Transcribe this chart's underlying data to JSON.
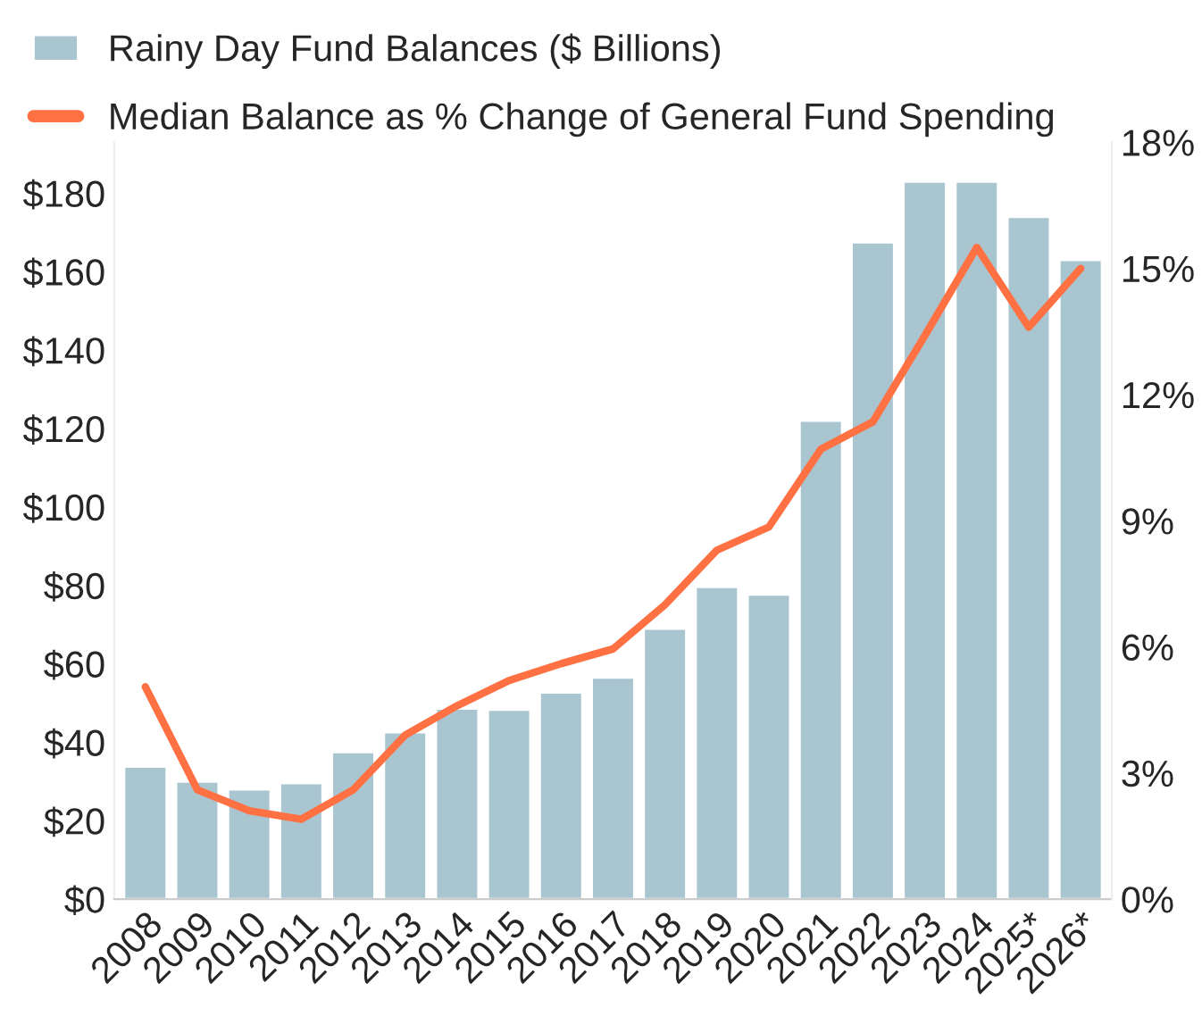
{
  "chart_data": {
    "type": "bar",
    "categories": [
      "2008",
      "2009",
      "2010",
      "2011",
      "2012",
      "2013",
      "2014",
      "2015",
      "2016",
      "2017",
      "2018",
      "2019",
      "2020",
      "2021",
      "2022",
      "2023",
      "2024",
      "2025*",
      "2026*"
    ],
    "series": [
      {
        "name": "Rainy Day Fund Balances ($ Billions)",
        "color": "#a9c6d0",
        "values": [
          33.8,
          30,
          28,
          29.6,
          37.5,
          42.6,
          48.6,
          48.3,
          52.7,
          56.5,
          69,
          79.6,
          77.7,
          122,
          167.5,
          183,
          183,
          174,
          163
        ]
      },
      {
        "name": "Median Balance as % Change of General Fund Spending",
        "type": "line",
        "axis": "y2",
        "color": "#ff7043",
        "values": [
          5.05,
          2.6,
          2.1,
          1.9,
          2.6,
          3.9,
          4.6,
          5.2,
          5.6,
          5.95,
          7.0,
          8.3,
          8.85,
          10.7,
          11.35,
          13.4,
          15.5,
          13.6,
          15.0
        ]
      }
    ],
    "ylim": [
      0,
      193
    ],
    "yticks": [
      {
        "value": 0,
        "label": "$0"
      },
      {
        "value": 20,
        "label": "$20"
      },
      {
        "value": 40,
        "label": "$40"
      },
      {
        "value": 60,
        "label": "$60"
      },
      {
        "value": 80,
        "label": "$80"
      },
      {
        "value": 100,
        "label": "$100"
      },
      {
        "value": 120,
        "label": "$120"
      },
      {
        "value": 140,
        "label": "$140"
      },
      {
        "value": 160,
        "label": "$160"
      },
      {
        "value": 180,
        "label": "$180"
      }
    ],
    "y2lim": [
      0,
      18
    ],
    "y2ticks": [
      {
        "value": 0,
        "label": "0%"
      },
      {
        "value": 3,
        "label": "3%"
      },
      {
        "value": 6,
        "label": "6%"
      },
      {
        "value": 9,
        "label": "9%"
      },
      {
        "value": 12,
        "label": "12%"
      },
      {
        "value": 15,
        "label": "15%"
      },
      {
        "value": 18,
        "label": "18%"
      }
    ],
    "legend": "top left",
    "grid": false
  }
}
